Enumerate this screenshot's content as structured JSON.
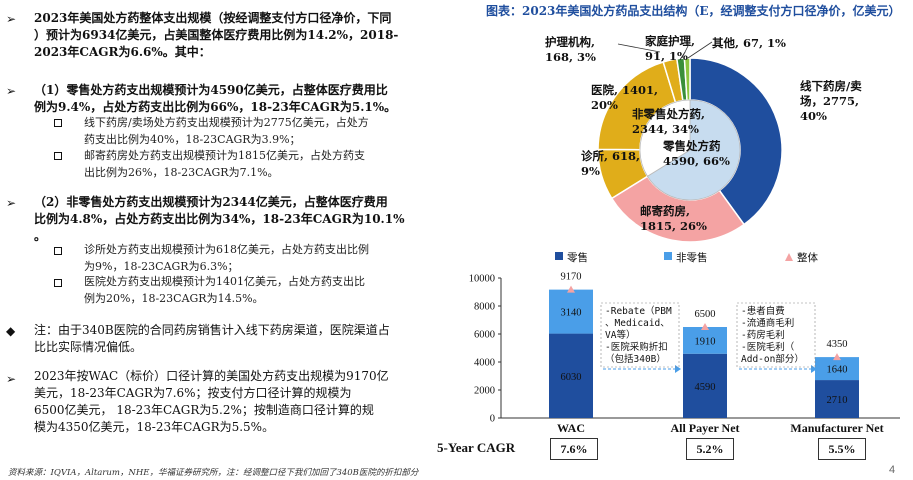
{
  "left": {
    "bullets": [
      {
        "marker": "➢",
        "lines": [
          "2023年美国处方药整体支出规模（按经调整支付方口径净价，下同",
          "）预计为6934亿美元，占美国整体医疗费用比例为14.2%，2018-",
          "2023年CAGR为6.6%。其中："
        ]
      },
      {
        "marker": "➢",
        "lines": [
          "（1）零售处方药支出规模预计为4590亿美元，占整体医疗费用比",
          "例为9.4%，占处方药支出比例为66%，18-23年CAGR为5.1%。"
        ]
      },
      {
        "marker": "➢",
        "lines": [
          "（2）非零售处方药支出规模预计为2344亿美元，占整体医疗费用",
          "比例为4.8%，占处方药支出比例为34%，18-23年CAGR为10.1%",
          "。"
        ]
      },
      {
        "marker": "◆",
        "lines": [
          "注：由于340B医院的合同药房销售计入线下药房渠道，医院渠道占",
          "比比实际情况偏低。"
        ]
      },
      {
        "marker": "➢",
        "lines": [
          "2023年按WAC（标价）口径计算的美国处方药支出规模为9170亿",
          "美元，18-23年CAGR为7.6%；按支付方口径计算的规模为",
          "6500亿美元，  18-23年CAGR为5.2%；按制造商口径计算的规",
          "模为4350亿美元，18-23年CAGR为5.5%。"
        ]
      }
    ],
    "subs": [
      [
        "线下药房/卖场处方药支出规模预计为2775亿美元，占处方",
        "药支出比例为40%，18-23CAGR为3.9%；"
      ],
      [
        "邮寄药房处方药支出规模预计为1815亿美元，占处方药支",
        "出比例为26%，18-23CAGR为7.1%。"
      ],
      [
        "诊所处方药支出规模预计为618亿美元，占处方药支出比例",
        "为9%，18-23CAGR为6.3%；"
      ],
      [
        "医院处方药支出规模预计为1401亿美元，占处方药支出比",
        "例为20%，18-23CAGR为14.5%。"
      ]
    ]
  },
  "figure_title": "图表：2023年美国处方药品支出结构（E，经调整支付方口径净价，亿美元）",
  "chart_data": [
    {
      "type": "pie",
      "outer": [
        {
          "name": "线下药房/卖场",
          "value": 2775,
          "pct": "40%",
          "color": "#1f4e9e"
        },
        {
          "name": "邮寄药房",
          "value": 1815,
          "pct": "26%",
          "color": "#f4a3a3"
        },
        {
          "name": "诊所",
          "value": 618,
          "pct": "9%",
          "color": "#e0ad1a"
        },
        {
          "name": "医院",
          "value": 1401,
          "pct": "20%",
          "color": "#e0ad1a"
        },
        {
          "name": "护理机构",
          "value": 168,
          "pct": "3%",
          "color": "#e0ad1a"
        },
        {
          "name": "家庭护理",
          "value": 91,
          "pct": "1%",
          "color": "#3a8f3a"
        },
        {
          "name": "其他",
          "value": 67,
          "pct": "1%",
          "color": "#8dc63f"
        }
      ],
      "inner": [
        {
          "name": "零售处方药",
          "value": 4590,
          "pct": "66%",
          "color": "#c7dcef"
        },
        {
          "name": "非零售处方药",
          "value": 2344,
          "pct": "34%",
          "color": "#ffffff"
        }
      ],
      "labels": {
        "offline": [
          "线下药房/卖",
          "场，2775,",
          "40%"
        ],
        "mail": [
          "邮寄药房,",
          "1815, 26%"
        ],
        "clinic": [
          "诊所, 618,",
          "9%"
        ],
        "hospital": [
          "医院, 1401,",
          "20%"
        ],
        "nursing": [
          "护理机构,",
          "168, 3%"
        ],
        "home": [
          "家庭护理,",
          "91, 1%"
        ],
        "other": "其他, 67, 1%",
        "inner_nonretail": [
          "非零售处方药,",
          "2344, 34%"
        ],
        "inner_retail": [
          "零售处方药",
          "4590, 66%"
        ]
      }
    },
    {
      "type": "bar",
      "stacked": true,
      "categories": [
        "WAC",
        "All Payer Net",
        "Manufacturer Net"
      ],
      "series": [
        {
          "name": "零售",
          "values": [
            6030,
            4590,
            2710
          ],
          "color": "#1f4e9e"
        },
        {
          "name": "非零售",
          "values": [
            3140,
            1910,
            1640
          ],
          "color": "#4a9ee8"
        }
      ],
      "totals": [
        9170,
        6500,
        4350
      ],
      "total_name": "整体",
      "total_color": "#f4a3a3",
      "ylim": [
        0,
        10000
      ],
      "yticks": [
        0,
        2000,
        4000,
        6000,
        8000,
        10000
      ],
      "annotations": [
        [
          "-Rebate（PBM",
          "、Medicaid、",
          "VA等）",
          "-医院采购折扣",
          "（包括340B）"
        ],
        [
          "-患者自费",
          "-流通商毛利",
          "-药房毛利",
          "-医院毛利（",
          "Add-on部分）"
        ]
      ]
    }
  ],
  "cagr": {
    "label": "5-Year CAGR",
    "values": [
      "7.6%",
      "5.2%",
      "5.5%"
    ]
  },
  "source": "资料来源：IQVIA，Altarum，NHE，华福证券研究所，注：经调整口径下我们加回了340B医院的折扣部分",
  "page_number": "4"
}
